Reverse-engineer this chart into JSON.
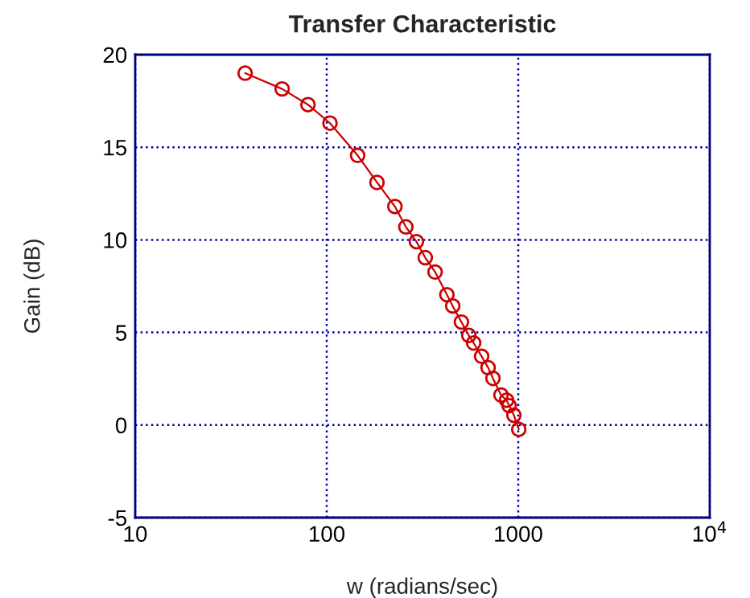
{
  "chart_data": {
    "type": "line",
    "title": "Transfer Characteristic",
    "xlabel": "w (radians/sec)",
    "ylabel": "Gain (dB)",
    "log": "x",
    "x": [
      37.5,
      58.5,
      79.8,
      104,
      145,
      183,
      227,
      259,
      294,
      327,
      368,
      424,
      455,
      505,
      552,
      585,
      644,
      696,
      738,
      813,
      869,
      896,
      949,
      1006
    ],
    "series": [
      {
        "color": "#cc0000",
        "values": [
          19.0,
          18.15,
          17.3,
          16.3,
          14.56,
          13.1,
          11.8,
          10.7,
          9.9,
          9.04,
          8.26,
          7.04,
          6.43,
          5.56,
          4.84,
          4.43,
          3.71,
          3.1,
          2.52,
          1.62,
          1.34,
          1.05,
          0.53,
          -0.23
        ]
      }
    ],
    "xlim": [
      10,
      10000
    ],
    "xticks": [
      10,
      100,
      1000,
      {
        "value": 10000,
        "label": "10$^{4}$"
      }
    ],
    "ylim": [
      -5,
      20
    ],
    "yticks": [
      -5,
      0,
      5,
      10,
      15,
      20
    ],
    "grid": true,
    "marker": "circle",
    "line_style": "solid"
  }
}
